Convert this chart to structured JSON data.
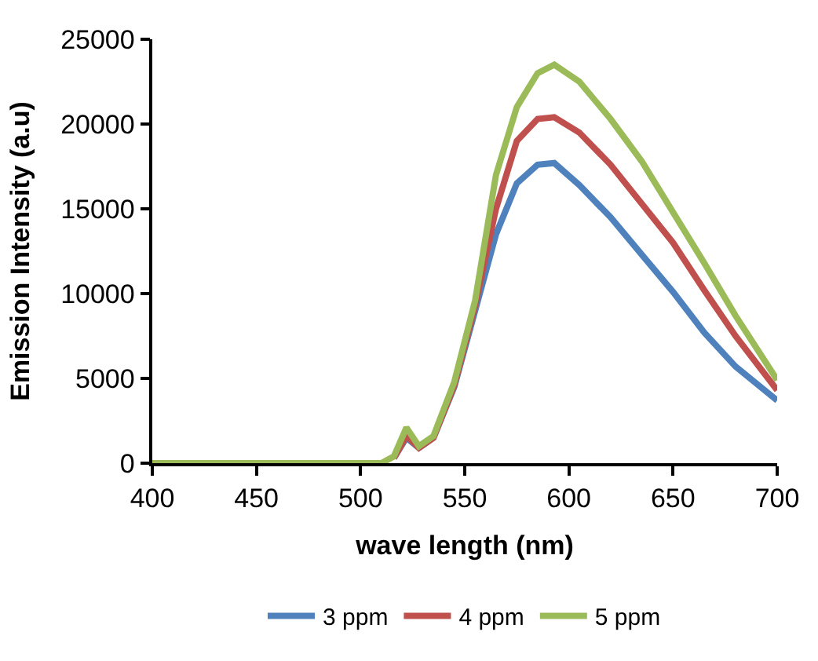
{
  "chart_data": {
    "type": "line",
    "xlabel": "wave length (nm)",
    "ylabel": "Emission Intensity (a.u)",
    "x": [
      400,
      450,
      500,
      510,
      516,
      522,
      528,
      535,
      545,
      555,
      565,
      575,
      585,
      593,
      605,
      620,
      635,
      650,
      665,
      680,
      700
    ],
    "series": [
      {
        "name": "3 ppm",
        "color": "#4f81bd",
        "values": [
          null,
          null,
          null,
          null,
          300,
          1500,
          900,
          1500,
          4500,
          9000,
          13500,
          16500,
          17600,
          17700,
          16400,
          14500,
          12300,
          10100,
          7700,
          5700,
          3700
        ]
      },
      {
        "name": "4 ppm",
        "color": "#c0504d",
        "values": [
          null,
          null,
          null,
          null,
          300,
          1600,
          900,
          1500,
          4600,
          9300,
          15000,
          19000,
          20300,
          20400,
          19500,
          17600,
          15300,
          13000,
          10200,
          7500,
          4300
        ]
      },
      {
        "name": "5 ppm",
        "color": "#9bbb59",
        "values": [
          0,
          0,
          0,
          0,
          400,
          2100,
          1000,
          1600,
          4800,
          9600,
          17000,
          21000,
          23000,
          23500,
          22500,
          20300,
          17800,
          14800,
          11800,
          8700,
          4900
        ]
      }
    ],
    "xlim": [
      400,
      700
    ],
    "xticks": [
      400,
      450,
      500,
      550,
      600,
      650,
      700
    ],
    "ylim": [
      0,
      25000
    ],
    "yticks": [
      0,
      5000,
      10000,
      15000,
      20000,
      25000
    ],
    "legend": "bottom",
    "marker": "none",
    "line_style": "solid"
  }
}
